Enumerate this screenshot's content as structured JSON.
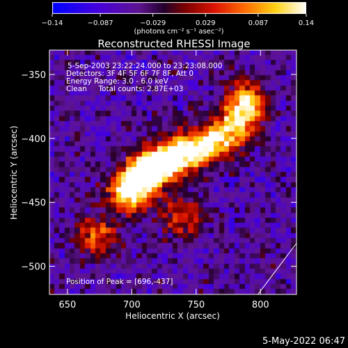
{
  "chart_data": {
    "type": "heatmap",
    "title": "Reconstructed RHESSI Image",
    "xlabel": "Heliocentric X (arcsec)",
    "ylabel": "Heliocentric Y (arcsec)",
    "xlim": [
      636,
      828
    ],
    "ylim": [
      -522,
      -331
    ],
    "x_ticks": [
      {
        "value": 650,
        "label": "650"
      },
      {
        "value": 700,
        "label": "700"
      },
      {
        "value": 750,
        "label": "750"
      },
      {
        "value": 800,
        "label": "800"
      }
    ],
    "y_ticks": [
      {
        "value": -350,
        "label": "−350"
      },
      {
        "value": -400,
        "label": "−400"
      },
      {
        "value": -450,
        "label": "−450"
      },
      {
        "value": -500,
        "label": "−500"
      }
    ],
    "annotations": [
      "5-Sep-2003 23:22:24.000 to 23:23:08.000",
      "Detectors: 3F 4F 5F 6F 7F 8F, Att 0",
      "Energy Range: 3.0 - 6.0 keV",
      "Clean     Total counts: 2.87E+03"
    ],
    "peak_label": "Position of Peak = [696,-437]",
    "peak": {
      "x": 696,
      "y": -437
    },
    "colorbar": {
      "range": [
        -0.14,
        0.14
      ],
      "ticks": [
        {
          "value": -0.14,
          "label": "−0.14"
        },
        {
          "value": -0.087,
          "label": "−0.087"
        },
        {
          "value": -0.029,
          "label": "−0.029"
        },
        {
          "value": 0.029,
          "label": "0.029"
        },
        {
          "value": 0.087,
          "label": "0.087"
        },
        {
          "value": 0.14,
          "label": "0.14"
        }
      ],
      "unit_label": "(photons cm⁻² s⁻¹ asec⁻²)"
    },
    "bright_ridge": [
      {
        "x": 698,
        "y": -442,
        "v": 0.14
      },
      {
        "x": 710,
        "y": -428,
        "v": 0.11
      },
      {
        "x": 724,
        "y": -420,
        "v": 0.125
      },
      {
        "x": 740,
        "y": -412,
        "v": 0.1
      },
      {
        "x": 760,
        "y": -405,
        "v": 0.11
      },
      {
        "x": 780,
        "y": -393,
        "v": 0.09
      },
      {
        "x": 790,
        "y": -372,
        "v": 0.11
      },
      {
        "x": 672,
        "y": -478,
        "v": 0.06
      },
      {
        "x": 740,
        "y": -462,
        "v": 0.05
      }
    ],
    "limb_line": [
      [
        798,
        -522
      ],
      [
        828,
        -482
      ]
    ],
    "colors": {
      "background": "#000000",
      "text": "#ffffff",
      "line": "#ffffff"
    }
  },
  "footer": {
    "timestamp": "5-May-2022 06:47"
  }
}
